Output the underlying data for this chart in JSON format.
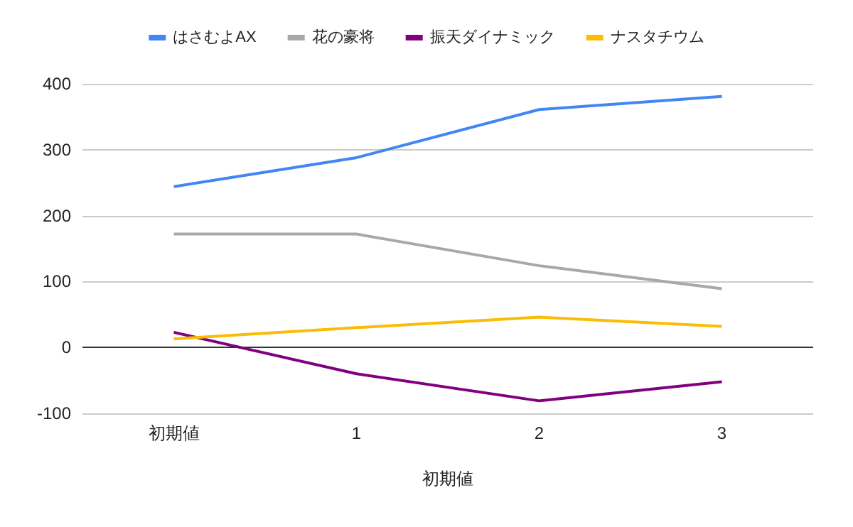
{
  "chart_data": {
    "type": "line",
    "xlabel": "初期値",
    "categories": [
      "初期値",
      "1",
      "2",
      "3"
    ],
    "series": [
      {
        "name": "はさむよAX",
        "color": "#4285f4",
        "values": [
          244,
          288,
          361,
          381
        ]
      },
      {
        "name": "花の豪将",
        "color": "#a8a8a8",
        "values": [
          172,
          172,
          124,
          89
        ]
      },
      {
        "name": "振天ダイナミック",
        "color": "#800080",
        "values": [
          23,
          -40,
          -81,
          -52
        ]
      },
      {
        "name": "ナスタチウム",
        "color": "#fbbc04",
        "values": [
          13,
          30,
          46,
          32
        ]
      }
    ],
    "ylim": [
      -100,
      400
    ],
    "yticks": [
      -100,
      0,
      100,
      200,
      300,
      400
    ],
    "grid": "y",
    "legend": "top",
    "marker": "none",
    "line_style": "solid"
  }
}
